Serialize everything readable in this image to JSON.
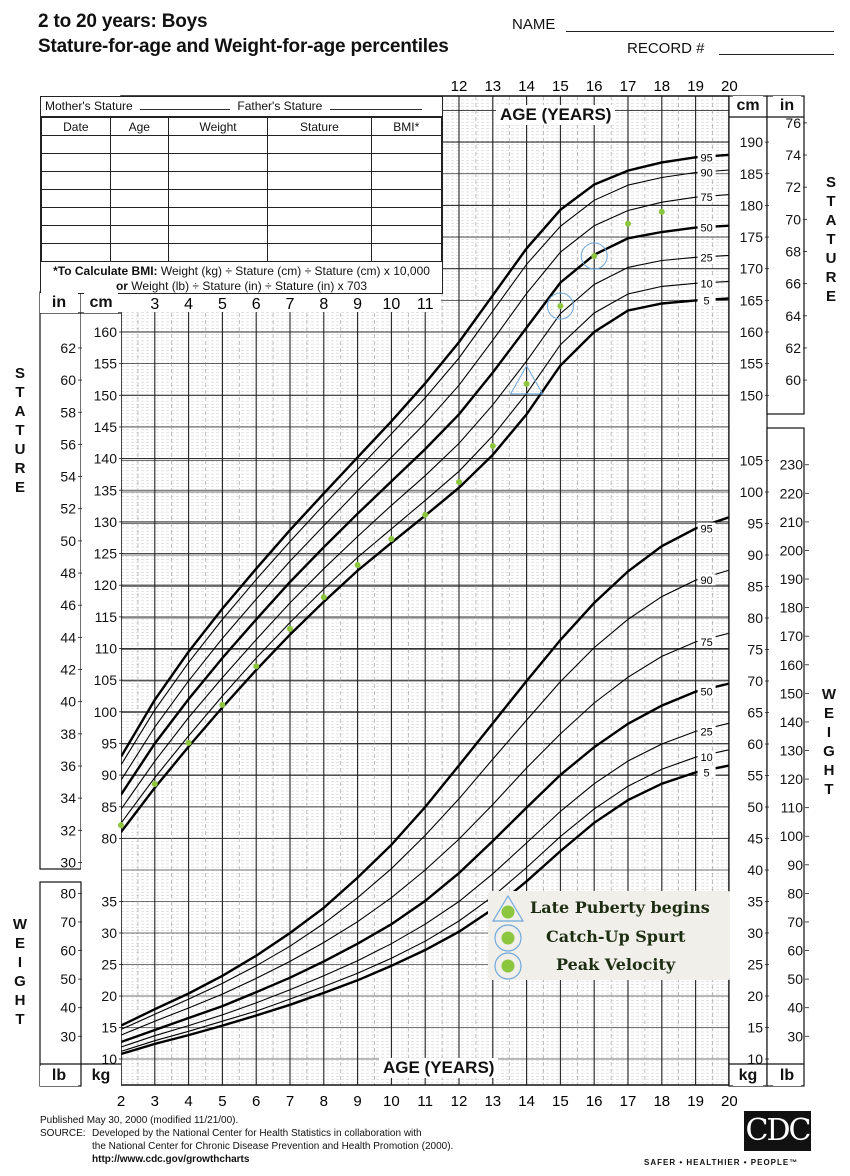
{
  "header": {
    "title_line1": "2 to 20 years: Boys",
    "title_line2": "Stature-for-age and Weight-for-age percentiles",
    "name_label": "NAME",
    "record_label": "RECORD #"
  },
  "record_table": {
    "mother_label": "Mother's Stature",
    "father_label": "Father's Stature",
    "columns": [
      "Date",
      "Age",
      "Weight",
      "Stature",
      "BMI*"
    ],
    "rows": 7,
    "bmi_note_bold": "*To Calculate BMI:",
    "bmi_note_1": " Weight (kg) ÷ Stature (cm) ÷ Stature (cm) x 10,000",
    "bmi_note_or": "or",
    "bmi_note_2": " Weight (lb) ÷ Stature (in) ÷ Stature (in) x 703"
  },
  "axes": {
    "age_label": "AGE (YEARS)",
    "stature_label": "STATURE",
    "weight_label": "WEIGHT",
    "unit_in": "in",
    "unit_cm": "cm",
    "unit_lb": "lb",
    "unit_kg": "kg",
    "age_ticks_top": [
      "12",
      "13",
      "14",
      "15",
      "16",
      "17",
      "18",
      "19",
      "20"
    ],
    "age_ticks_bottom": [
      "2",
      "3",
      "4",
      "5",
      "6",
      "7",
      "8",
      "9",
      "10",
      "11",
      "12",
      "13",
      "14",
      "15",
      "16",
      "17",
      "18",
      "19",
      "20"
    ],
    "age_ticks_inner": [
      "3",
      "4",
      "5",
      "6",
      "7",
      "8",
      "9",
      "10",
      "11"
    ],
    "left_cm_ticks": [
      "160",
      "155",
      "150",
      "145",
      "140",
      "135",
      "130",
      "125",
      "120",
      "115",
      "110",
      "105",
      "100",
      "95",
      "90",
      "85",
      "80"
    ],
    "left_in_ticks": [
      "62",
      "60",
      "58",
      "56",
      "54",
      "52",
      "50",
      "48",
      "46",
      "44",
      "42",
      "40",
      "38",
      "36",
      "34",
      "32",
      "30"
    ],
    "left_kg_ticks": [
      "35",
      "30",
      "25",
      "20",
      "15",
      "10"
    ],
    "left_lb_ticks": [
      "80",
      "70",
      "60",
      "50",
      "40",
      "30"
    ],
    "right_cm_ticks": [
      "190",
      "185",
      "180",
      "175",
      "170",
      "165",
      "160",
      "155",
      "150"
    ],
    "right_in_ticks": [
      "76",
      "74",
      "72",
      "70",
      "68",
      "66",
      "64",
      "62",
      "60"
    ],
    "right_kg_ticks": [
      "105",
      "100",
      "95",
      "90",
      "85",
      "80",
      "75",
      "70",
      "65",
      "60",
      "55",
      "50",
      "45",
      "40",
      "35",
      "30",
      "25",
      "20",
      "15",
      "10"
    ],
    "right_lb_ticks": [
      "230",
      "220",
      "210",
      "200",
      "190",
      "180",
      "170",
      "160",
      "150",
      "140",
      "130",
      "120",
      "110",
      "100",
      "90",
      "80",
      "70",
      "60",
      "50",
      "40",
      "30"
    ]
  },
  "legend": {
    "items": [
      {
        "marker": "triangle",
        "label": "Late Puberty begins"
      },
      {
        "marker": "circle",
        "label": "Catch-Up Spurt"
      },
      {
        "marker": "circle",
        "label": "Peak Velocity"
      }
    ],
    "dot_color": "#8cc63f",
    "marker_color": "#6fa8dc",
    "background": "#f1efea"
  },
  "footer": {
    "published": "Published May 30, 2000 (modified 11/21/00).",
    "source_label": "SOURCE:",
    "source_1": "Developed by the National Center for Health Statistics in collaboration with",
    "source_2": "the National Center for Chronic Disease Prevention and Health Promotion (2000).",
    "url": "http://www.cdc.gov/growthcharts",
    "logo": "CDC",
    "tagline": "SAFER • HEALTHIER • PEOPLE™"
  },
  "chart_data": {
    "type": "line",
    "title": "2 to 20 years: Boys — Stature-for-age and Weight-for-age percentiles",
    "xlabel": "AGE (YEARS)",
    "ylabel": "STATURE (cm/in) / WEIGHT (kg/lb)",
    "x": [
      2,
      3,
      4,
      5,
      6,
      7,
      8,
      9,
      10,
      11,
      12,
      13,
      14,
      15,
      16,
      17,
      18,
      19,
      20
    ],
    "xlim": [
      2,
      20
    ],
    "stature_ylim_cm": [
      77,
      197
    ],
    "weight_ylim_kg": [
      8,
      107
    ],
    "grid": true,
    "percentile_labels": [
      "5",
      "10",
      "25",
      "50",
      "75",
      "90",
      "95"
    ],
    "stature_percentiles_cm": [
      {
        "name": "95",
        "values": [
          92.9,
          101.9,
          109.5,
          116.3,
          122.6,
          128.7,
          134.5,
          140.2,
          145.9,
          151.9,
          158.4,
          165.8,
          173.2,
          179.3,
          183.3,
          185.5,
          186.8,
          187.6,
          188.0
        ]
      },
      {
        "name": "90",
        "values": [
          91.6,
          100.3,
          107.8,
          114.6,
          120.9,
          126.9,
          132.7,
          138.3,
          143.9,
          149.6,
          155.9,
          163.3,
          170.7,
          176.7,
          180.8,
          183.2,
          184.4,
          185.2,
          185.6
        ]
      },
      {
        "name": "75",
        "values": [
          89.2,
          97.6,
          104.9,
          111.6,
          117.8,
          123.8,
          129.4,
          134.9,
          140.2,
          145.6,
          151.6,
          158.7,
          166.1,
          172.6,
          176.8,
          179.2,
          180.5,
          181.3,
          181.7
        ]
      },
      {
        "name": "50",
        "values": [
          86.9,
          95.0,
          102.0,
          108.5,
          114.6,
          120.5,
          126.0,
          131.3,
          136.4,
          141.5,
          147.0,
          153.6,
          160.7,
          167.8,
          172.2,
          174.8,
          175.8,
          176.5,
          176.8
        ]
      },
      {
        "name": "25",
        "values": [
          84.6,
          92.2,
          99.1,
          105.4,
          111.4,
          117.2,
          122.6,
          127.7,
          132.6,
          137.3,
          142.4,
          148.5,
          155.4,
          162.9,
          167.5,
          170.2,
          171.3,
          171.8,
          172.1
        ]
      },
      {
        "name": "10",
        "values": [
          82.4,
          89.6,
          96.2,
          102.5,
          108.5,
          114.1,
          119.4,
          124.4,
          128.9,
          133.4,
          138.0,
          143.6,
          150.3,
          158.0,
          163.0,
          166.0,
          167.2,
          167.7,
          168.0
        ]
      },
      {
        "name": "5",
        "values": [
          81.0,
          88.0,
          94.5,
          100.7,
          106.6,
          112.2,
          117.4,
          122.3,
          126.7,
          131.0,
          135.4,
          140.6,
          147.0,
          154.7,
          160.0,
          163.4,
          164.5,
          165.0,
          165.3
        ]
      }
    ],
    "weight_percentiles_kg": [
      {
        "name": "95",
        "values": [
          15.3,
          17.9,
          20.4,
          23.2,
          26.4,
          30.0,
          34.0,
          38.8,
          44.0,
          50.0,
          56.6,
          63.3,
          70.0,
          76.5,
          82.4,
          87.4,
          91.4,
          94.2,
          96.0
        ]
      },
      {
        "name": "90",
        "values": [
          14.7,
          17.1,
          19.5,
          22.0,
          24.8,
          27.9,
          31.5,
          35.6,
          40.2,
          45.5,
          51.3,
          57.6,
          63.8,
          69.9,
          75.3,
          79.8,
          83.4,
          86.0,
          87.6
        ]
      },
      {
        "name": "75",
        "values": [
          13.8,
          16.0,
          18.1,
          20.3,
          22.8,
          25.5,
          28.5,
          31.8,
          35.6,
          40.0,
          44.9,
          50.4,
          56.2,
          61.6,
          66.5,
          70.6,
          73.9,
          76.2,
          77.6
        ]
      },
      {
        "name": "50",
        "values": [
          12.7,
          14.6,
          16.5,
          18.4,
          20.6,
          22.9,
          25.5,
          28.3,
          31.4,
          35.1,
          39.5,
          44.6,
          49.9,
          55.1,
          59.5,
          63.2,
          66.1,
          68.3,
          69.6
        ]
      },
      {
        "name": "25",
        "values": [
          11.9,
          13.7,
          15.3,
          17.0,
          18.9,
          21.0,
          23.2,
          25.6,
          28.3,
          31.4,
          35.0,
          39.4,
          44.3,
          49.3,
          53.7,
          57.3,
          60.0,
          62.0,
          63.3
        ]
      },
      {
        "name": "10",
        "values": [
          11.2,
          12.9,
          14.4,
          16.0,
          17.6,
          19.5,
          21.5,
          23.6,
          26.0,
          28.7,
          31.9,
          35.8,
          40.4,
          45.3,
          49.7,
          53.3,
          56.0,
          57.9,
          59.1
        ]
      },
      {
        "name": "5",
        "values": [
          10.8,
          12.4,
          13.8,
          15.3,
          16.9,
          18.6,
          20.5,
          22.5,
          24.8,
          27.3,
          30.2,
          33.8,
          38.2,
          43.0,
          47.5,
          51.1,
          53.7,
          55.5,
          56.6
        ]
      }
    ],
    "plotted_stature_points": [
      {
        "age": 2,
        "cm": 82.1
      },
      {
        "age": 3,
        "cm": 88.6
      },
      {
        "age": 4,
        "cm": 95.1
      },
      {
        "age": 5,
        "cm": 101.1
      },
      {
        "age": 6,
        "cm": 107.2
      },
      {
        "age": 7,
        "cm": 113.1
      },
      {
        "age": 8,
        "cm": 118.1
      },
      {
        "age": 9,
        "cm": 123.2
      },
      {
        "age": 10,
        "cm": 127.3
      },
      {
        "age": 11,
        "cm": 131.1
      },
      {
        "age": 12,
        "cm": 136.3
      },
      {
        "age": 13,
        "cm": 142.0
      },
      {
        "age": 14,
        "cm": 151.8,
        "marker": "Late Puberty begins"
      },
      {
        "age": 15,
        "cm": 164.1,
        "marker": "Catch-Up Spurt"
      },
      {
        "age": 16,
        "cm": 172.0,
        "marker": "Peak Velocity"
      },
      {
        "age": 17,
        "cm": 177.1
      },
      {
        "age": 18,
        "cm": 179.0
      }
    ],
    "legend": [
      "Late Puberty begins",
      "Catch-Up Spurt",
      "Peak Velocity"
    ],
    "legend_position": "lower right"
  }
}
